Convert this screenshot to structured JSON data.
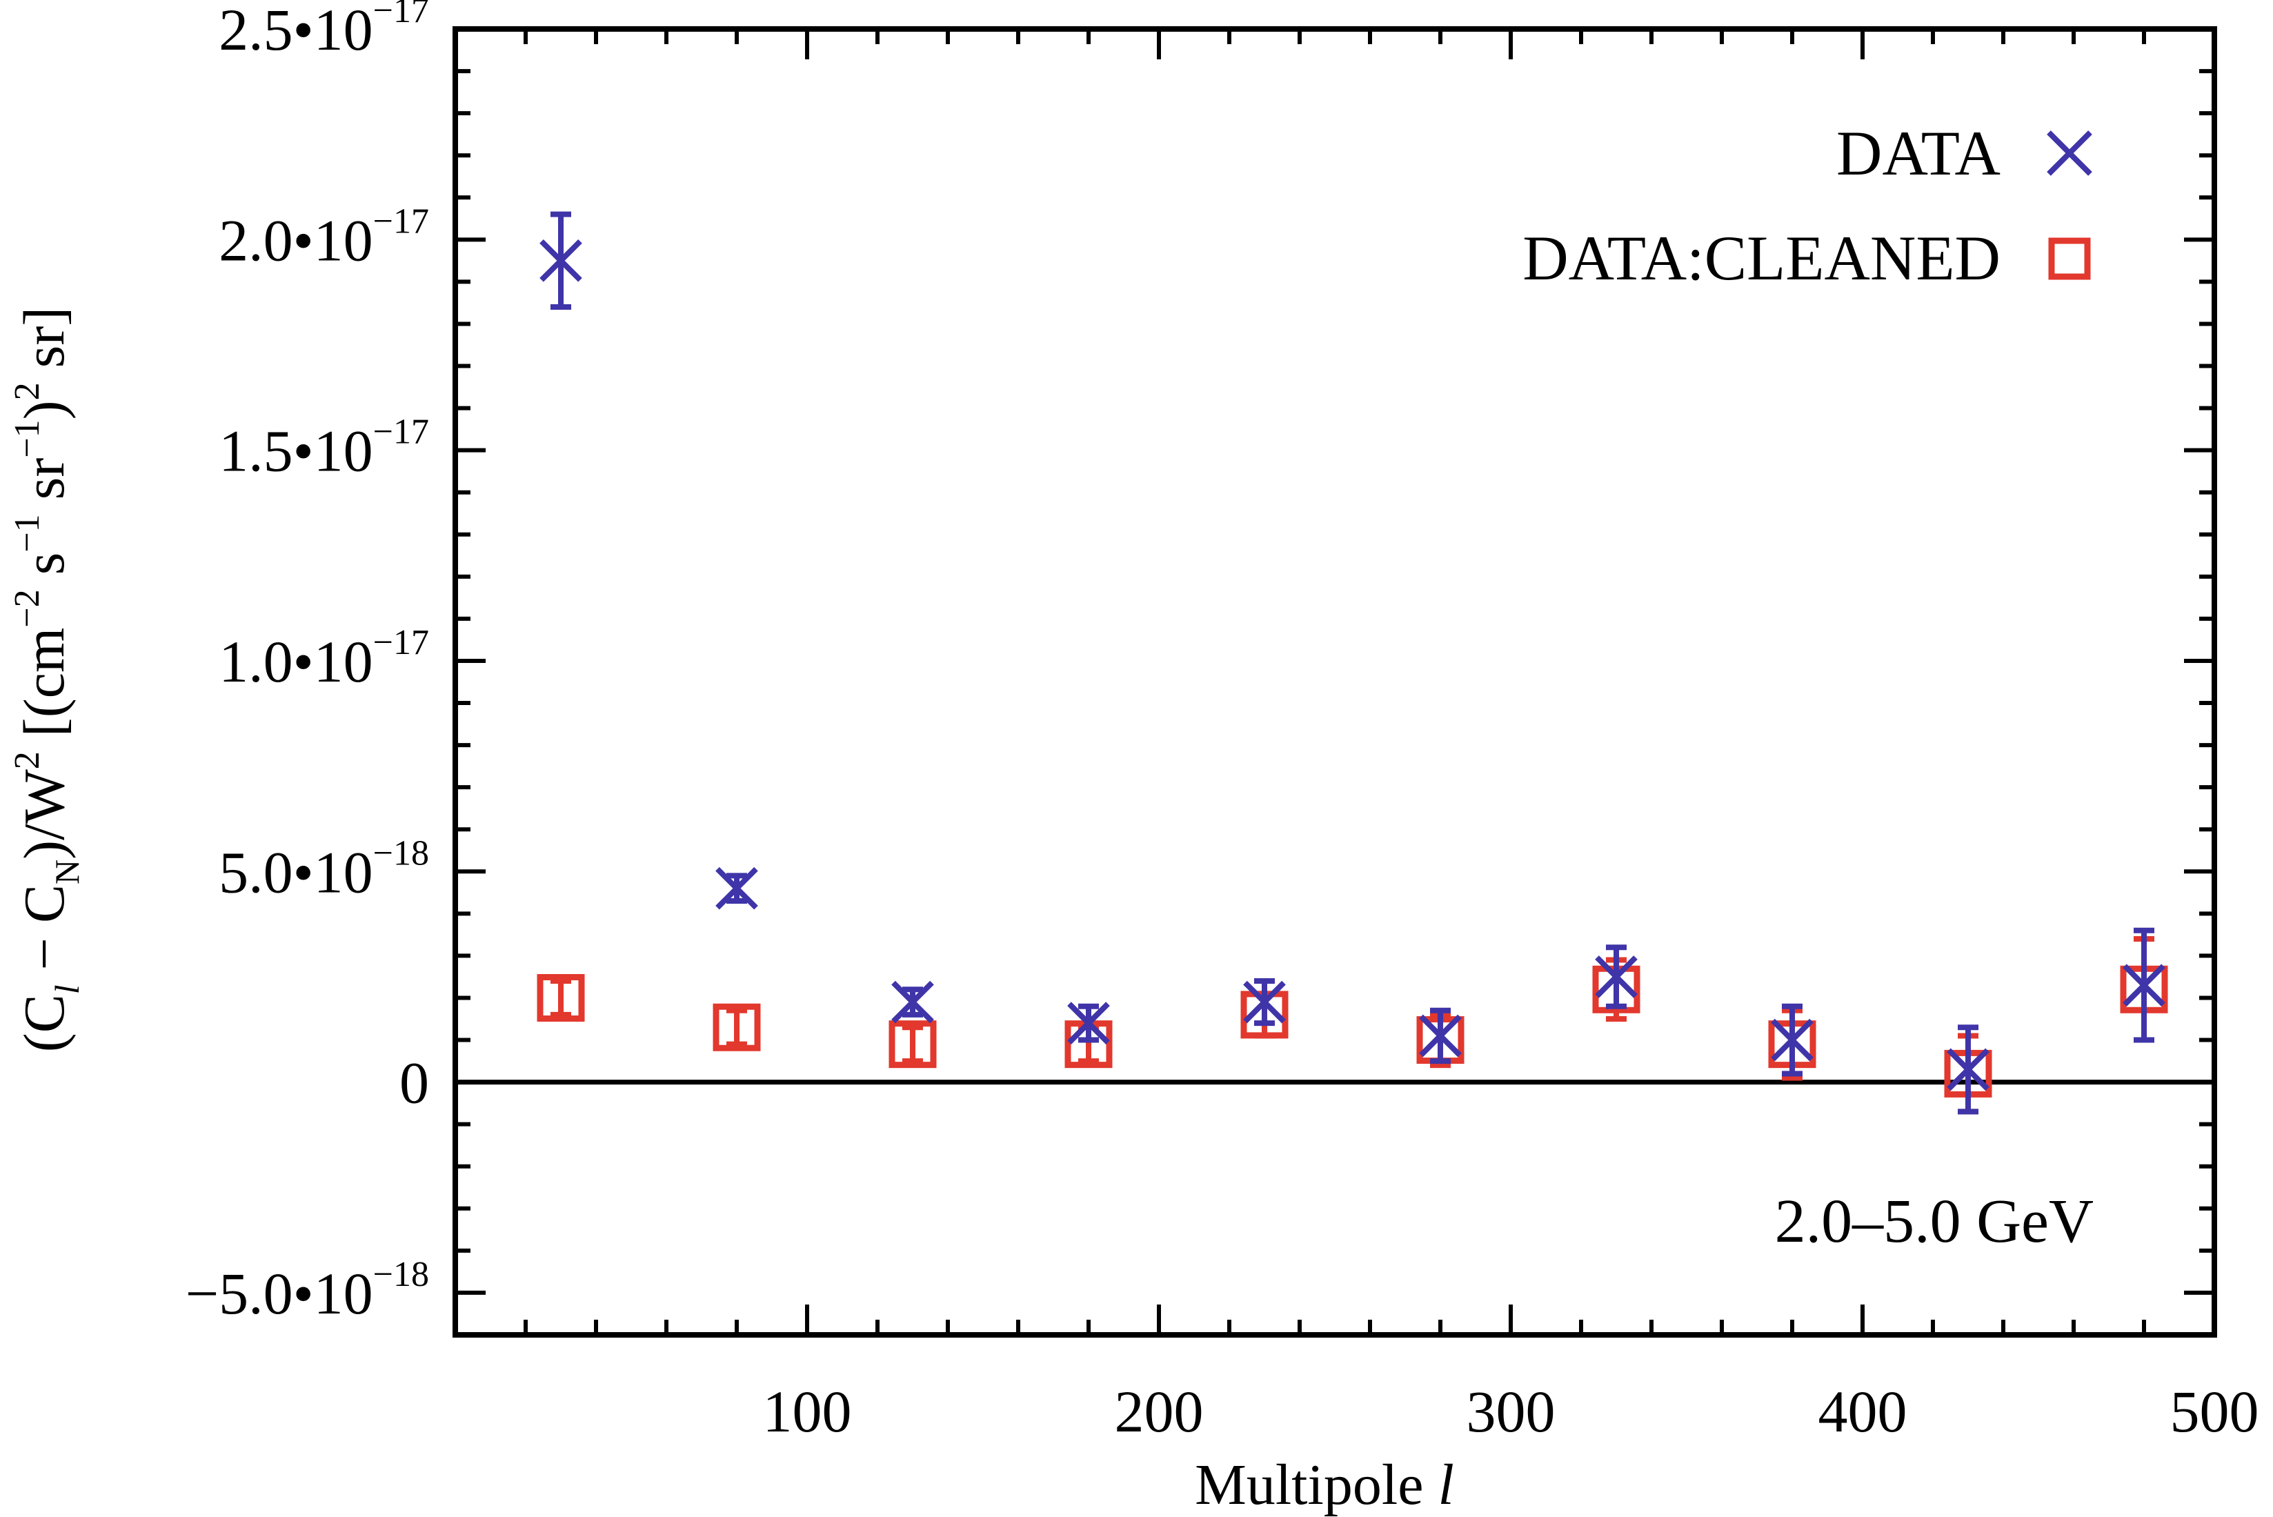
{
  "chart_data": {
    "type": "scatter",
    "xlabel": {
      "main": "Multipole ",
      "italic": "l"
    },
    "ylabel": {
      "p1": "(C",
      "p1_sub": "l",
      "p2": " − C",
      "p2_sub": "N",
      "p3": ")/W",
      "p3_sup": "2",
      "p4": "  [(cm",
      "p4_sup": "−2",
      "p5": " s",
      "p5_sup": "−1",
      "p6": " sr",
      "p6_sup": "−1",
      "p7": ")",
      "p7_sup": "2",
      "p8": " sr]"
    },
    "xlim": [
      0,
      500
    ],
    "ylim": [
      -6e-18,
      2.5e-17
    ],
    "x_ticks": [
      {
        "value": 100,
        "label": "100"
      },
      {
        "value": 200,
        "label": "200"
      },
      {
        "value": 300,
        "label": "300"
      },
      {
        "value": 400,
        "label": "400"
      },
      {
        "value": 500,
        "label": "500"
      }
    ],
    "y_ticks": [
      {
        "value": -5e-18,
        "mant": "−5.0•10",
        "exp": "−18"
      },
      {
        "value": 0,
        "mant": "0",
        "exp": ""
      },
      {
        "value": 5e-18,
        "mant": "5.0•10",
        "exp": "−18"
      },
      {
        "value": 1e-17,
        "mant": "1.0•10",
        "exp": "−17"
      },
      {
        "value": 1.5e-17,
        "mant": "1.5•10",
        "exp": "−17"
      },
      {
        "value": 2e-17,
        "mant": "2.0•10",
        "exp": "−17"
      },
      {
        "value": 2.5e-17,
        "mant": "2.5•10",
        "exp": "−17"
      }
    ],
    "zero_line": true,
    "annotation": "2.0–5.0 GeV",
    "legend_position": "top-right",
    "series": [
      {
        "name": "DATA",
        "marker": "x",
        "color": "#3f34a8",
        "points": [
          {
            "x": 30,
            "y": 1.95e-17,
            "err": 1.1e-18
          },
          {
            "x": 80,
            "y": 4.6e-18,
            "err": 3e-19
          },
          {
            "x": 130,
            "y": 1.9e-18,
            "err": 3e-19
          },
          {
            "x": 180,
            "y": 1.4e-18,
            "err": 4e-19
          },
          {
            "x": 230,
            "y": 1.9e-18,
            "err": 5e-19
          },
          {
            "x": 280,
            "y": 1.1e-18,
            "err": 6e-19
          },
          {
            "x": 330,
            "y": 2.5e-18,
            "err": 7e-19
          },
          {
            "x": 380,
            "y": 1e-18,
            "err": 8e-19
          },
          {
            "x": 430,
            "y": 3e-19,
            "err": 1e-18
          },
          {
            "x": 480,
            "y": 2.3e-18,
            "err": 1.3e-18
          }
        ]
      },
      {
        "name": "DATA:CLEANED",
        "marker": "square",
        "color": "#e2382d",
        "points": [
          {
            "x": 30,
            "y": 2e-18,
            "err": 4e-19
          },
          {
            "x": 80,
            "y": 1.3e-18,
            "err": 4e-19
          },
          {
            "x": 130,
            "y": 9e-19,
            "err": 4e-19
          },
          {
            "x": 180,
            "y": 9e-19,
            "err": 4e-19
          },
          {
            "x": 230,
            "y": 1.6e-18,
            "err": 5e-19
          },
          {
            "x": 280,
            "y": 1e-18,
            "err": 6e-19
          },
          {
            "x": 330,
            "y": 2.2e-18,
            "err": 7e-19
          },
          {
            "x": 380,
            "y": 9e-19,
            "err": 8e-19
          },
          {
            "x": 430,
            "y": 2e-19,
            "err": 9e-19
          },
          {
            "x": 480,
            "y": 2.2e-18,
            "err": 1.2e-18
          }
        ]
      }
    ]
  }
}
